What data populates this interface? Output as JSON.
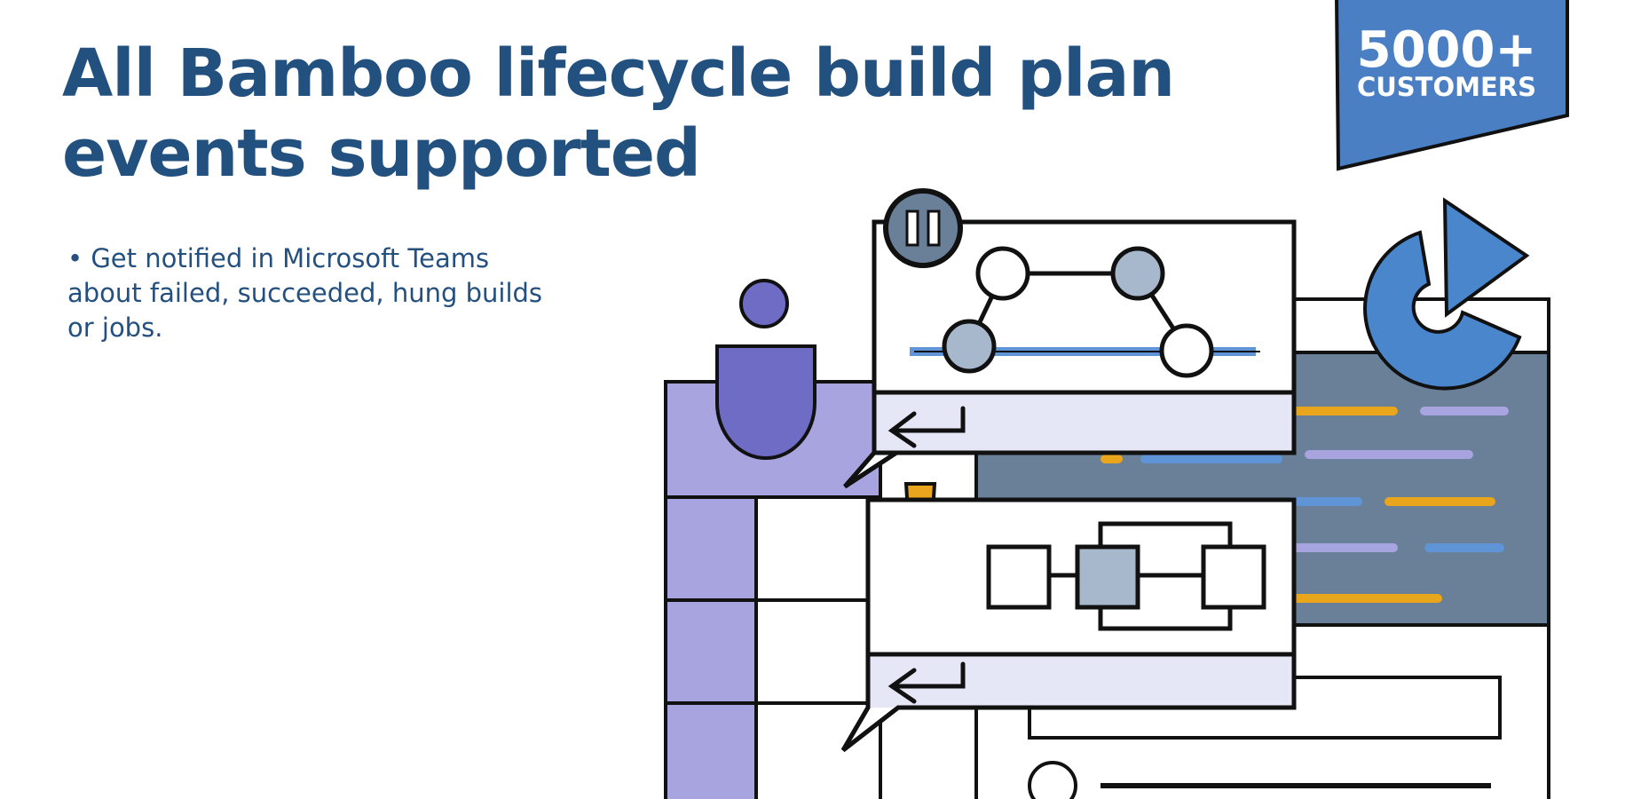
{
  "headline": "All Bamboo lifecycle build plan events supported",
  "bullet": "• Get notified in Microsoft Teams about failed, succeeded, hung builds or jobs.",
  "badge": {
    "number": "5000+",
    "label": "CUSTOMERS"
  },
  "colors": {
    "heading": "#22507f",
    "badge": "#4a7fc4",
    "purple": "#a7a4df",
    "purple_dark": "#6e6cc4",
    "slate": "#6a7f98",
    "orange": "#e9a51c",
    "light_blue": "#5f95d6",
    "lavender_band": "#e5e7f7"
  },
  "icons": [
    "pause-icon",
    "person-icon",
    "reply-arrow-icon",
    "warning-icon",
    "pie-chart-play-icon",
    "workflow-graph-icon",
    "pipeline-boxes-icon"
  ]
}
